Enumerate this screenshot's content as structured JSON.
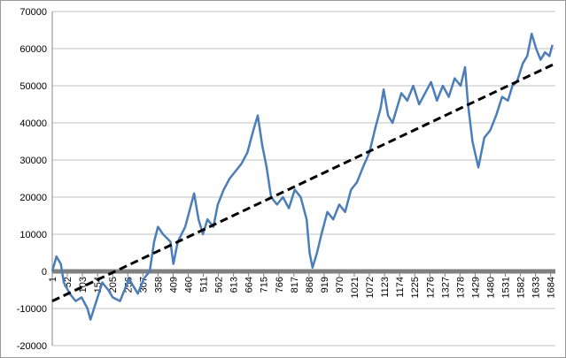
{
  "chart_data": {
    "type": "line",
    "x": [
      1,
      15,
      30,
      40,
      60,
      80,
      100,
      120,
      130,
      150,
      170,
      190,
      205,
      230,
      260,
      290,
      310,
      330,
      345,
      358,
      375,
      400,
      410,
      425,
      450,
      470,
      480,
      495,
      510,
      525,
      545,
      560,
      580,
      600,
      620,
      640,
      660,
      680,
      695,
      710,
      725,
      740,
      760,
      780,
      800,
      820,
      840,
      860,
      870,
      880,
      895,
      910,
      930,
      950,
      970,
      990,
      1010,
      1030,
      1050,
      1072,
      1090,
      1110,
      1120,
      1135,
      1150,
      1165,
      1180,
      1200,
      1220,
      1240,
      1260,
      1280,
      1300,
      1320,
      1340,
      1360,
      1380,
      1395,
      1405,
      1420,
      1440,
      1460,
      1480,
      1500,
      1520,
      1540,
      1555,
      1570,
      1590,
      1605,
      1620,
      1635,
      1650,
      1665,
      1680,
      1690
    ],
    "series": [
      {
        "color": "#4a7ebb",
        "values": [
          0,
          4000,
          2000,
          -3000,
          -6000,
          -8000,
          -7000,
          -10000,
          -13000,
          -8000,
          -3000,
          -5000,
          -7000,
          -8000,
          -2000,
          -6000,
          -2000,
          0,
          8000,
          12000,
          10000,
          8000,
          2000,
          8000,
          12000,
          18000,
          21000,
          14000,
          10000,
          14000,
          12000,
          18000,
          22000,
          25000,
          27000,
          29000,
          32000,
          38000,
          42000,
          34000,
          28000,
          20000,
          18000,
          20000,
          17000,
          22000,
          20000,
          14000,
          5000,
          1000,
          5000,
          10000,
          16000,
          14000,
          18000,
          16000,
          22000,
          24000,
          28000,
          32000,
          38000,
          44000,
          49000,
          42000,
          40000,
          44000,
          48000,
          46000,
          50000,
          45000,
          48000,
          51000,
          46000,
          50000,
          47000,
          52000,
          50000,
          55000,
          45000,
          35000,
          28000,
          36000,
          38000,
          42000,
          47000,
          46000,
          50000,
          51000,
          56000,
          58000,
          64000,
          60000,
          57000,
          59000,
          58000,
          61000
        ]
      }
    ],
    "trend": {
      "x": [
        1,
        1700
      ],
      "values": [
        -8000,
        56000
      ],
      "color": "#000000"
    },
    "xlim": [
      1,
      1700
    ],
    "ylim": [
      -20000,
      70000
    ],
    "xticks": [
      1,
      52,
      103,
      154,
      205,
      256,
      307,
      358,
      409,
      460,
      511,
      562,
      613,
      664,
      715,
      766,
      817,
      868,
      919,
      970,
      1021,
      1072,
      1123,
      1174,
      1225,
      1276,
      1327,
      1378,
      1429,
      1480,
      1531,
      1582,
      1633,
      1684
    ],
    "yticks": [
      -20000,
      -10000,
      0,
      10000,
      20000,
      30000,
      40000,
      50000,
      60000,
      70000
    ],
    "grid": true
  }
}
